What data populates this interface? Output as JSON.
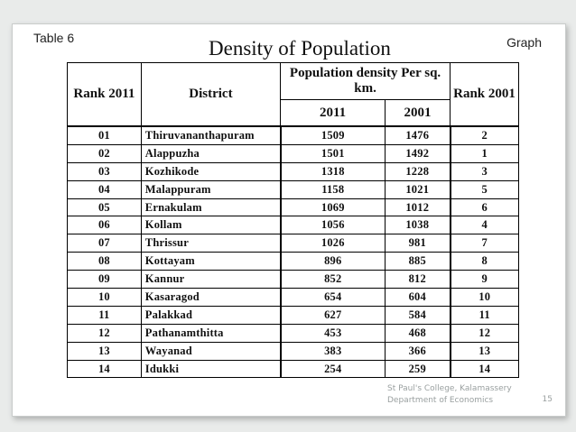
{
  "slide": {
    "table_label": "Table 6",
    "title": "Density of Population",
    "graph_label": "Graph",
    "footer_line1": "St Paul's College, Kalamassery",
    "footer_line2": "Department of Economics",
    "page_number": "15"
  },
  "table": {
    "headers": {
      "rank2011": "Rank 2011",
      "district": "District",
      "density": "Population density Per sq. km.",
      "year2011": "2011",
      "year2001": "2001",
      "rank2001": "Rank 2001"
    },
    "rows": [
      {
        "rank2011": "01",
        "district": "Thiruvananthapuram",
        "d2011": "1509",
        "d2001": "1476",
        "rank2001": "2"
      },
      {
        "rank2011": "02",
        "district": "Alappuzha",
        "d2011": "1501",
        "d2001": "1492",
        "rank2001": "1"
      },
      {
        "rank2011": "03",
        "district": "Kozhikode",
        "d2011": "1318",
        "d2001": "1228",
        "rank2001": "3"
      },
      {
        "rank2011": "04",
        "district": "Malappuram",
        "d2011": "1158",
        "d2001": "1021",
        "rank2001": "5"
      },
      {
        "rank2011": "05",
        "district": "Ernakulam",
        "d2011": "1069",
        "d2001": "1012",
        "rank2001": "6"
      },
      {
        "rank2011": "06",
        "district": "Kollam",
        "d2011": "1056",
        "d2001": "1038",
        "rank2001": "4"
      },
      {
        "rank2011": "07",
        "district": "Thrissur",
        "d2011": "1026",
        "d2001": "981",
        "rank2001": "7"
      },
      {
        "rank2011": "08",
        "district": "Kottayam",
        "d2011": "896",
        "d2001": "885",
        "rank2001": "8"
      },
      {
        "rank2011": "09",
        "district": "Kannur",
        "d2011": "852",
        "d2001": "812",
        "rank2001": "9"
      },
      {
        "rank2011": "10",
        "district": "Kasaragod",
        "d2011": "654",
        "d2001": "604",
        "rank2001": "10"
      },
      {
        "rank2011": "11",
        "district": "Palakkad",
        "d2011": "627",
        "d2001": "584",
        "rank2001": "11"
      },
      {
        "rank2011": "12",
        "district": "Pathanamthitta",
        "d2011": "453",
        "d2001": "468",
        "rank2001": "12"
      },
      {
        "rank2011": "13",
        "district": "Wayanad",
        "d2011": "383",
        "d2001": "366",
        "rank2001": "13"
      },
      {
        "rank2011": "14",
        "district": "Idukki",
        "d2011": "254",
        "d2001": "259",
        "rank2001": "14"
      }
    ]
  }
}
